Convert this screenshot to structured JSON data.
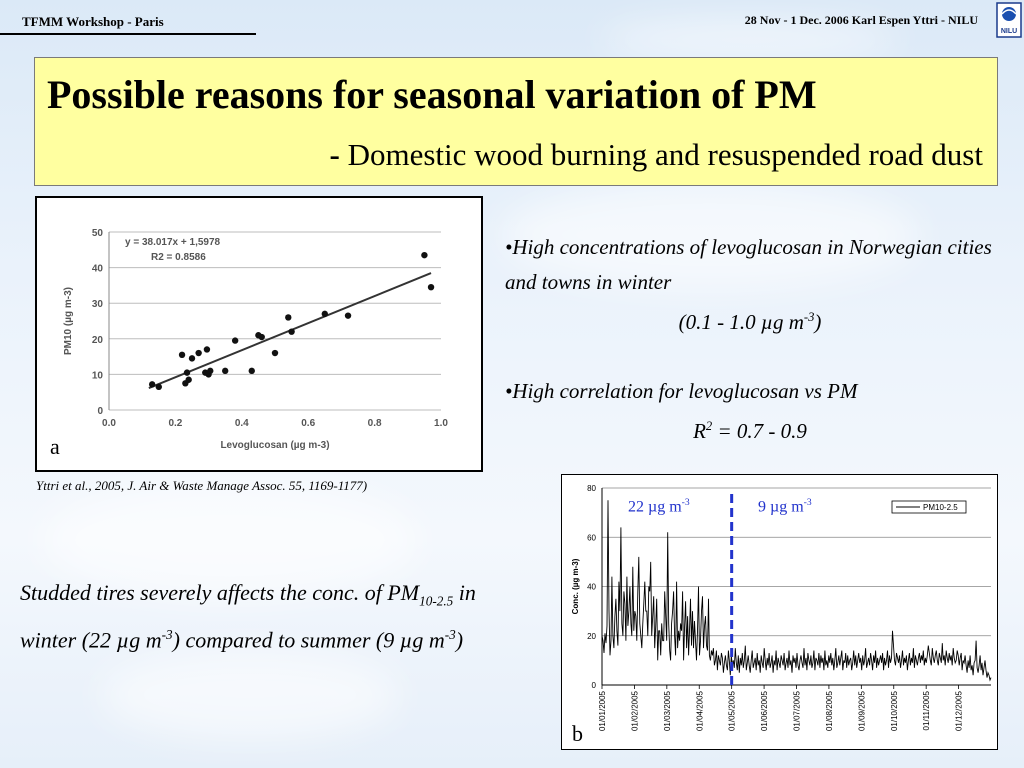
{
  "header": {
    "left": "TFMM Workshop - Paris",
    "right": "28 Nov - 1 Dec. 2006   Karl Espen Yttri - NILU",
    "logo_text": "NILU"
  },
  "title": {
    "main": "Possible reasons for seasonal variation of PM",
    "dash": "-",
    "sub": "Domestic wood burning and resuspended road dust"
  },
  "bullets": {
    "b1_line1": "•High concentrations of levoglucosan in Norwegian cities and towns in winter",
    "b1_range": "(0.1 - 1.0 µg m",
    "b1_range_exp": "-3",
    "b1_range_end": ")",
    "b2_line1": "•High correlation for levoglucosan vs PM",
    "b2_r": "R",
    "b2_r_exp": "2",
    "b2_r_end": " = 0.7 - 0.9"
  },
  "citation": "Yttri et al., 2005, J. Air & Waste Manage Assoc. 55, 1169-1177)",
  "panel_labels": {
    "a": "a",
    "b": "b"
  },
  "studded": {
    "t1": "Studded tires severely affects the conc. of PM",
    "t1_sub": "10-2.5",
    "t2": " in winter (22 µg m",
    "t2_exp": "-3",
    "t3": ") compared to summer (9 µg m",
    "t3_exp": "-3",
    "t4": ")"
  },
  "chart_annotations": {
    "winter_value": "22 µg m",
    "winter_exp": "-3",
    "summer_value": "9 µg m",
    "summer_exp": "-3"
  },
  "chart_data": [
    {
      "type": "scatter",
      "xlabel": "Levoglucosan (µg m-3)",
      "ylabel": "PM10 (µg m-3)",
      "xlim": [
        0,
        1.0
      ],
      "ylim": [
        0,
        50
      ],
      "xticks": [
        "0.0",
        "0.2",
        "0.4",
        "0.6",
        "0.8",
        "1.0"
      ],
      "yticks": [
        "0",
        "10",
        "20",
        "30",
        "40",
        "50"
      ],
      "equation": "y = 38.017x + 1,5978",
      "r2_label": "R2 = 0.8586",
      "trendline": {
        "slope": 38.017,
        "intercept": 1.5978
      },
      "points": [
        [
          0.13,
          7.2
        ],
        [
          0.15,
          6.5
        ],
        [
          0.22,
          15.5
        ],
        [
          0.23,
          7.5
        ],
        [
          0.235,
          10.5
        ],
        [
          0.24,
          8.5
        ],
        [
          0.25,
          14.5
        ],
        [
          0.27,
          16
        ],
        [
          0.29,
          10.5
        ],
        [
          0.295,
          17
        ],
        [
          0.3,
          10
        ],
        [
          0.305,
          11
        ],
        [
          0.35,
          11
        ],
        [
          0.38,
          19.5
        ],
        [
          0.43,
          11
        ],
        [
          0.45,
          21
        ],
        [
          0.46,
          20.5
        ],
        [
          0.5,
          16
        ],
        [
          0.54,
          26
        ],
        [
          0.55,
          22
        ],
        [
          0.65,
          27
        ],
        [
          0.72,
          26.5
        ],
        [
          0.95,
          43.5
        ],
        [
          0.97,
          34.5
        ]
      ],
      "grid": true
    },
    {
      "type": "line",
      "ylabel": "Conc. (µg m-3)",
      "ylim": [
        0,
        80
      ],
      "yticks": [
        "0",
        "20",
        "40",
        "60",
        "80"
      ],
      "xticks": [
        "01/01/2005",
        "01/02/2005",
        "01/03/2005",
        "01/04/2005",
        "01/05/2005",
        "01/06/2005",
        "01/07/2005",
        "01/08/2005",
        "01/09/2005",
        "01/10/2005",
        "01/11/2005",
        "01/12/2005"
      ],
      "legend": "top-right",
      "series": [
        {
          "name": "PM10-2.5",
          "values": [
            20,
            18,
            13,
            21,
            17,
            24,
            75,
            30,
            12,
            18,
            44,
            20,
            15,
            28,
            35,
            22,
            16,
            42,
            30,
            64,
            25,
            20,
            38,
            33,
            18,
            44,
            24,
            30,
            40,
            25,
            20,
            48,
            22,
            30,
            28,
            18,
            38,
            52,
            25,
            20,
            15,
            25,
            33,
            42,
            30,
            30,
            20,
            40,
            38,
            50,
            20,
            28,
            36,
            15,
            24,
            35,
            10,
            22,
            22,
            12,
            25,
            18,
            18,
            38,
            28,
            18,
            62,
            25,
            14,
            10,
            25,
            30,
            38,
            20,
            12,
            42,
            15,
            22,
            18,
            25,
            22,
            38,
            10,
            24,
            34,
            15,
            28,
            12,
            22,
            35,
            16,
            30,
            15,
            26,
            18,
            10,
            22,
            40,
            12,
            18,
            30,
            36,
            15,
            24,
            28,
            16,
            14,
            35,
            12,
            10,
            14,
            12,
            15,
            8,
            10,
            14,
            6,
            12,
            10,
            8,
            13,
            11,
            5,
            9,
            12,
            8,
            6,
            14,
            10,
            4,
            12,
            8,
            10,
            7,
            15,
            9,
            6,
            12,
            5,
            11,
            8,
            13,
            7,
            10,
            16,
            6,
            9,
            12,
            8,
            5,
            10,
            14,
            7,
            9,
            11,
            6,
            13,
            8,
            10,
            5,
            12,
            9,
            7,
            15,
            10,
            6,
            11,
            8,
            13,
            7,
            9,
            12,
            5,
            10,
            8,
            14,
            6,
            11,
            9,
            7,
            12,
            10,
            8,
            13,
            6,
            9,
            11,
            7,
            14,
            8,
            10,
            5,
            12,
            9,
            11,
            7,
            13,
            8,
            6,
            10,
            12,
            9,
            7,
            15,
            8,
            11,
            6,
            13,
            10,
            8,
            12,
            7,
            9,
            14,
            6,
            11,
            10,
            8,
            13,
            7,
            12,
            9,
            11,
            6,
            14,
            8,
            10,
            7,
            12,
            9,
            13,
            8,
            11,
            6,
            10,
            15,
            7,
            9,
            12,
            8,
            11,
            14,
            6,
            10,
            9,
            13,
            7,
            12,
            8,
            10,
            11,
            6,
            9,
            14,
            8,
            12,
            7,
            10,
            13,
            9,
            11,
            6,
            12,
            8,
            10,
            15,
            7,
            9,
            11,
            8,
            13,
            10,
            6,
            12,
            9,
            14,
            7,
            11,
            8,
            10,
            12,
            9,
            13,
            6,
            11,
            8,
            10,
            14,
            7,
            12,
            9,
            11,
            22,
            16,
            10,
            8,
            13,
            11,
            9,
            12,
            7,
            10,
            14,
            8,
            11,
            9,
            12,
            6,
            10,
            13,
            8,
            11,
            9,
            15,
            7,
            12,
            10,
            8,
            11,
            13,
            9,
            12,
            10,
            14,
            8,
            11,
            9,
            12,
            16,
            13,
            10,
            8,
            15,
            11,
            9,
            12,
            14,
            10,
            8,
            13,
            11,
            9,
            17,
            10,
            12,
            8,
            14,
            11,
            9,
            13,
            10,
            12,
            8,
            15,
            11,
            9,
            10,
            14,
            12,
            8,
            11,
            13,
            6,
            10,
            9,
            12,
            8,
            5,
            10,
            7,
            12,
            6,
            8,
            4,
            9,
            10,
            18,
            7,
            5,
            8,
            12,
            6,
            9,
            4,
            7,
            10,
            6,
            3,
            5,
            4,
            2,
            3
          ]
        }
      ],
      "divider_at": "01/05/2005",
      "grid": true
    }
  ],
  "colors": {
    "title_box": "#ffffa0",
    "accent_blue": "#2233cc"
  }
}
